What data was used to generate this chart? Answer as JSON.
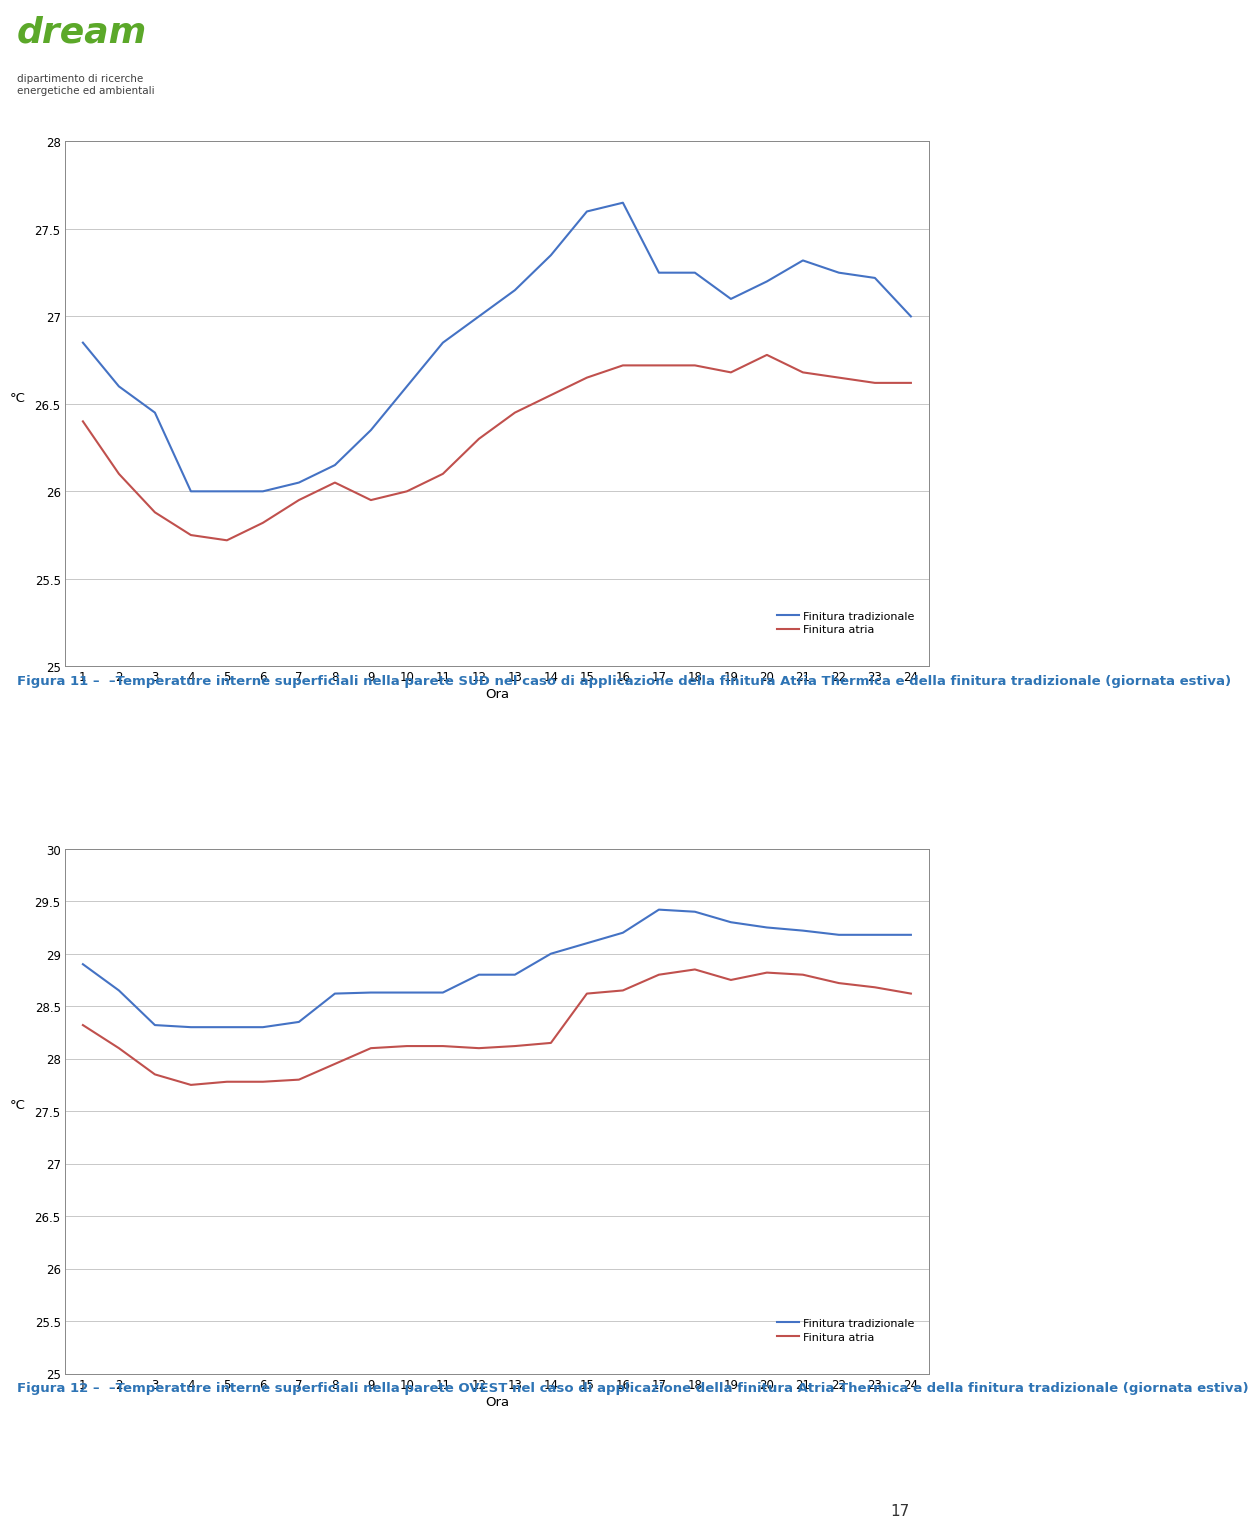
{
  "hours": [
    1,
    2,
    3,
    4,
    5,
    6,
    7,
    8,
    9,
    10,
    11,
    12,
    13,
    14,
    15,
    16,
    17,
    18,
    19,
    20,
    21,
    22,
    23,
    24
  ],
  "chart1": {
    "trad": [
      26.85,
      26.6,
      26.45,
      26.0,
      26.0,
      26.0,
      26.05,
      26.15,
      26.35,
      26.6,
      26.85,
      27.0,
      27.15,
      27.35,
      27.6,
      27.65,
      27.25,
      27.25,
      27.1,
      27.2,
      27.32,
      27.25,
      27.22,
      27.0
    ],
    "atria": [
      26.4,
      26.1,
      25.88,
      25.75,
      25.72,
      25.82,
      25.95,
      26.05,
      25.95,
      26.0,
      26.1,
      26.3,
      26.45,
      26.55,
      26.65,
      26.72,
      26.72,
      26.72,
      26.68,
      26.78,
      26.68,
      26.65,
      26.62,
      26.62
    ],
    "ylim": [
      25,
      28
    ],
    "yticks": [
      25,
      25.5,
      26,
      26.5,
      27,
      27.5,
      28
    ]
  },
  "chart2": {
    "trad": [
      28.9,
      28.65,
      28.32,
      28.3,
      28.3,
      28.3,
      28.35,
      28.62,
      28.63,
      28.63,
      28.63,
      28.8,
      28.8,
      29.0,
      29.1,
      29.2,
      29.42,
      29.4,
      29.3,
      29.25,
      29.22,
      29.18,
      29.18,
      29.18
    ],
    "atria": [
      28.32,
      28.1,
      27.85,
      27.75,
      27.78,
      27.78,
      27.8,
      27.95,
      28.1,
      28.12,
      28.12,
      28.1,
      28.12,
      28.15,
      28.62,
      28.65,
      28.8,
      28.85,
      28.75,
      28.82,
      28.8,
      28.72,
      28.68,
      28.62
    ],
    "ylim": [
      25,
      30
    ],
    "yticks": [
      25,
      25.5,
      26,
      26.5,
      27,
      27.5,
      28,
      28.5,
      29,
      29.5,
      30
    ]
  },
  "color_trad": "#4472C4",
  "color_atria": "#C0504D",
  "xlabel": "Ora",
  "ylabel": "°C",
  "caption1_bold": "Figura 11 –  –Temperature interne superficiali nella parete SUD nel caso di applicazione della finitura Atria Thermica e della finitura tradizionale (giornata estiva)",
  "caption2_bold": "Figura 12 –  –Temperature interne superficiali nella parete OVEST nel caso di applicazione della finitura Atria Thermica e della finitura tradizionale (giornata estiva)",
  "label_trad": "Finitura tradizionale",
  "label_atria": "Finitura atria",
  "page_number": "17",
  "background_color": "#ffffff",
  "grid_color": "#c8c8c8",
  "line_width": 1.5,
  "font_size_axis": 8.5,
  "font_size_caption": 9.5,
  "font_size_legend": 8,
  "logo_dream_color": "#5BA829",
  "logo_sub_color": "#404040",
  "chart_border_color": "#888888"
}
